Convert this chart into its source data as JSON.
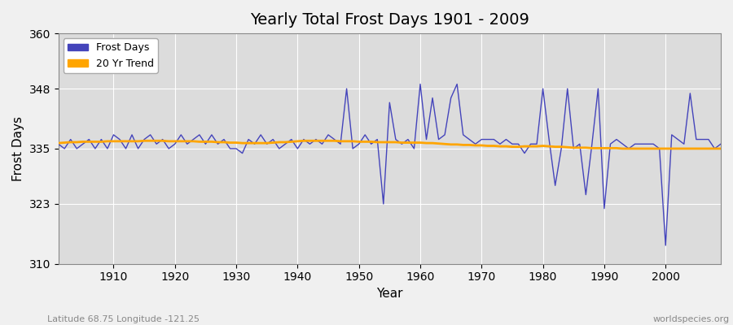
{
  "title": "Yearly Total Frost Days 1901 - 2009",
  "xlabel": "Year",
  "ylabel": "Frost Days",
  "ylim": [
    310,
    360
  ],
  "xlim": [
    1901,
    2009
  ],
  "yticks": [
    310,
    323,
    335,
    348,
    360
  ],
  "xticks": [
    1910,
    1920,
    1930,
    1940,
    1950,
    1960,
    1970,
    1980,
    1990,
    2000
  ],
  "bg_color": "#dcdcdc",
  "fig_color": "#f0f0f0",
  "frost_color": "#4444bb",
  "trend_color": "#FFA500",
  "subtitle": "Latitude 68.75 Longitude -121.25",
  "watermark": "worldspecies.org",
  "years": [
    1901,
    1902,
    1903,
    1904,
    1905,
    1906,
    1907,
    1908,
    1909,
    1910,
    1911,
    1912,
    1913,
    1914,
    1915,
    1916,
    1917,
    1918,
    1919,
    1920,
    1921,
    1922,
    1923,
    1924,
    1925,
    1926,
    1927,
    1928,
    1929,
    1930,
    1931,
    1932,
    1933,
    1934,
    1935,
    1936,
    1937,
    1938,
    1939,
    1940,
    1941,
    1942,
    1943,
    1944,
    1945,
    1946,
    1947,
    1948,
    1949,
    1950,
    1951,
    1952,
    1953,
    1954,
    1955,
    1956,
    1957,
    1958,
    1959,
    1960,
    1961,
    1962,
    1963,
    1964,
    1965,
    1966,
    1967,
    1968,
    1969,
    1970,
    1971,
    1972,
    1973,
    1974,
    1975,
    1976,
    1977,
    1978,
    1979,
    1980,
    1981,
    1982,
    1983,
    1984,
    1985,
    1986,
    1987,
    1988,
    1989,
    1990,
    1991,
    1992,
    1993,
    1994,
    1995,
    1996,
    1997,
    1998,
    1999,
    2000,
    2001,
    2002,
    2003,
    2004,
    2005,
    2006,
    2007,
    2008,
    2009
  ],
  "frost_days": [
    336,
    335,
    337,
    335,
    336,
    337,
    335,
    337,
    335,
    338,
    337,
    335,
    338,
    335,
    337,
    338,
    336,
    337,
    335,
    336,
    338,
    336,
    337,
    338,
    336,
    338,
    336,
    337,
    335,
    335,
    334,
    337,
    336,
    338,
    336,
    337,
    335,
    336,
    337,
    335,
    337,
    336,
    337,
    336,
    338,
    337,
    336,
    348,
    335,
    336,
    338,
    336,
    337,
    323,
    345,
    337,
    336,
    337,
    335,
    349,
    337,
    346,
    337,
    338,
    346,
    349,
    338,
    337,
    336,
    337,
    337,
    337,
    336,
    337,
    336,
    336,
    334,
    336,
    336,
    348,
    337,
    327,
    335,
    348,
    335,
    336,
    325,
    336,
    348,
    322,
    336,
    337,
    336,
    335,
    336,
    336,
    336,
    336,
    335,
    314,
    338,
    337,
    336,
    347,
    337,
    337,
    337,
    335,
    336
  ],
  "trend_years": [
    1901,
    1902,
    1903,
    1904,
    1905,
    1906,
    1907,
    1908,
    1909,
    1910,
    1911,
    1912,
    1913,
    1914,
    1915,
    1916,
    1917,
    1918,
    1919,
    1920,
    1921,
    1922,
    1923,
    1924,
    1925,
    1926,
    1927,
    1928,
    1929,
    1930,
    1931,
    1932,
    1933,
    1934,
    1935,
    1936,
    1937,
    1938,
    1939,
    1940,
    1941,
    1942,
    1943,
    1944,
    1945,
    1946,
    1947,
    1948,
    1949,
    1950,
    1951,
    1952,
    1953,
    1954,
    1955,
    1956,
    1957,
    1958,
    1959,
    1960,
    1961,
    1962,
    1963,
    1964,
    1965,
    1966,
    1967,
    1968,
    1969,
    1970,
    1971,
    1972,
    1973,
    1974,
    1975,
    1976,
    1977,
    1978,
    1979,
    1980,
    1981,
    1982,
    1983,
    1984,
    1985,
    1986,
    1987,
    1988,
    1989,
    1990,
    1991,
    1992,
    1993,
    1994,
    1995,
    1996,
    1997,
    1998,
    1999,
    2000,
    2001,
    2002,
    2003,
    2004,
    2005,
    2006,
    2007,
    2008,
    2009
  ],
  "trend_values": [
    336.2,
    336.3,
    336.4,
    336.4,
    336.5,
    336.5,
    336.5,
    336.5,
    336.6,
    336.6,
    336.6,
    336.6,
    336.6,
    336.6,
    336.7,
    336.7,
    336.7,
    336.7,
    336.6,
    336.6,
    336.6,
    336.6,
    336.6,
    336.5,
    336.5,
    336.5,
    336.4,
    336.4,
    336.3,
    336.3,
    336.2,
    336.2,
    336.2,
    336.2,
    336.2,
    336.3,
    336.4,
    336.4,
    336.5,
    336.6,
    336.7,
    336.7,
    336.7,
    336.7,
    336.7,
    336.7,
    336.6,
    336.6,
    336.6,
    336.5,
    336.5,
    336.5,
    336.4,
    336.4,
    336.4,
    336.4,
    336.3,
    336.3,
    336.3,
    336.3,
    336.2,
    336.2,
    336.1,
    336.0,
    335.9,
    335.9,
    335.8,
    335.8,
    335.7,
    335.7,
    335.6,
    335.6,
    335.5,
    335.5,
    335.4,
    335.4,
    335.5,
    335.5,
    335.5,
    335.6,
    335.5,
    335.4,
    335.4,
    335.3,
    335.2,
    335.2,
    335.2,
    335.1,
    335.1,
    335.1,
    335.1,
    335.1,
    335.0,
    335.0,
    335.0,
    335.0,
    335.0,
    335.0,
    335.0,
    335.0,
    335.0,
    335.0,
    335.0,
    335.0,
    335.0,
    335.0,
    335.0,
    335.0,
    335.0
  ]
}
